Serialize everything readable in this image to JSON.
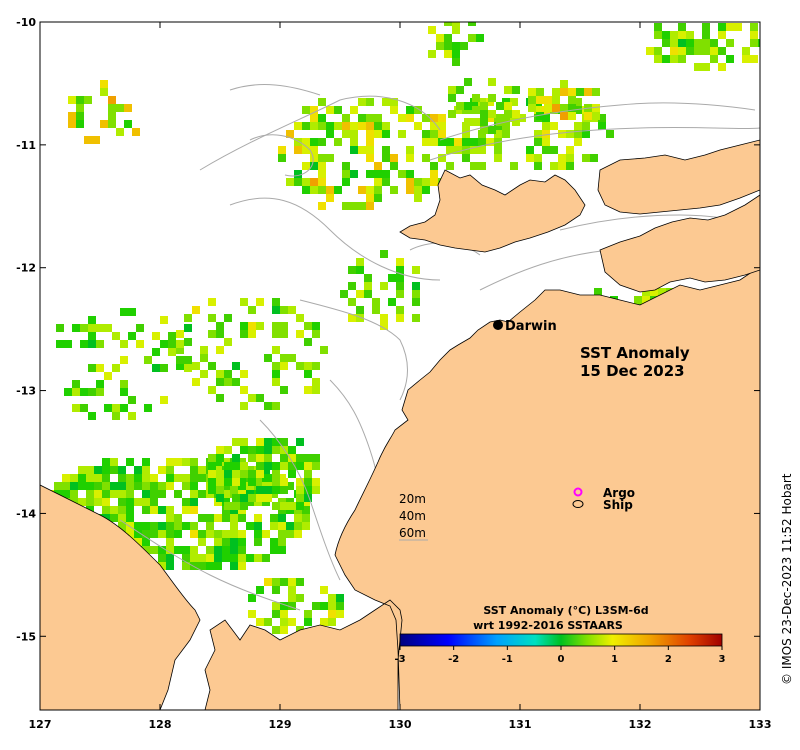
{
  "map": {
    "title_line1": "SST Anomaly",
    "title_line2": "15 Dec 2023",
    "place_label": "Darwin",
    "lon_ticks": [
      "127",
      "128",
      "129",
      "130",
      "131",
      "132",
      "133"
    ],
    "lat_ticks": [
      "-10",
      "-11",
      "-12",
      "-13",
      "-14",
      "-15"
    ],
    "lon_range": [
      127,
      133
    ],
    "lat_range": [
      -15.6,
      -10
    ],
    "land_color": "#fcc992",
    "ocean_color": "#ffffff",
    "isobath_color": "#aaaaaa"
  },
  "legend": {
    "argo_label": "Argo",
    "ship_label": "Ship",
    "argo_color": "#ff00ff",
    "depth_labels": [
      "20m",
      "40m",
      "60m"
    ]
  },
  "colorbar": {
    "title_line1": "SST Anomaly (°C) L3SM-6d",
    "title_line2": "wrt 1992-2016 SSTAARS",
    "ticks": [
      "-3",
      "-2",
      "-1",
      "0",
      "1",
      "2",
      "3"
    ],
    "range": [
      -3,
      3
    ]
  },
  "credit": "© IMOS 23-Dec-2023 11:52 Hobart"
}
